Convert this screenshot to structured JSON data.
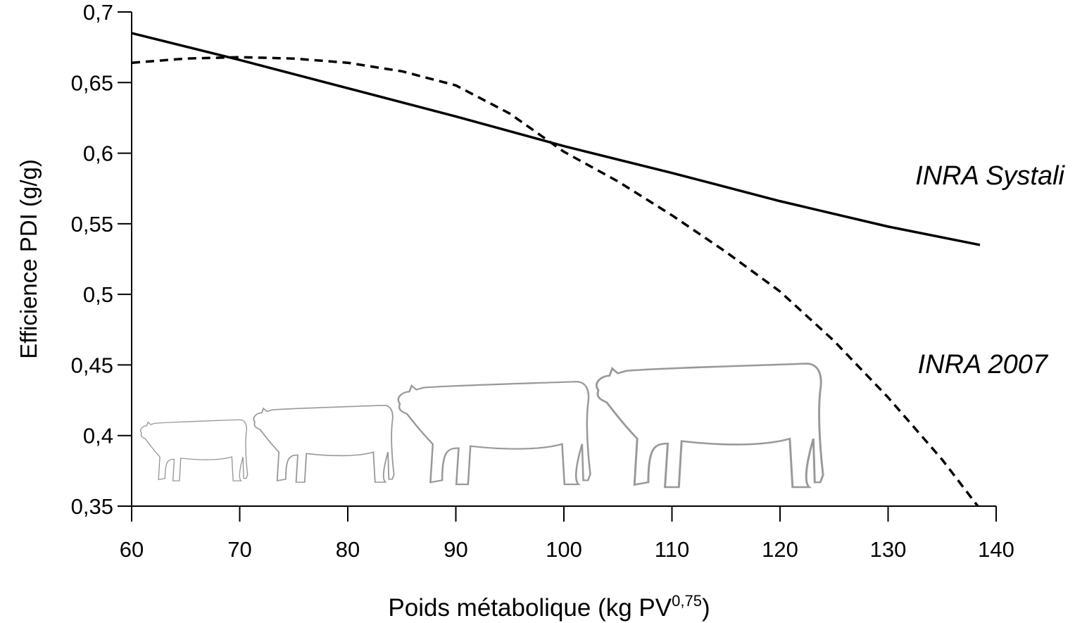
{
  "chart_data": {
    "type": "line",
    "xlabel": "Poids métabolique (kg PV",
    "xlabel_superscript": "0,75",
    "xlabel_end": ")",
    "ylabel": "Efficience PDI (g/g)",
    "xlim": [
      60,
      140
    ],
    "ylim": [
      0.35,
      0.7
    ],
    "xticks": [
      60,
      70,
      80,
      90,
      100,
      110,
      120,
      130,
      140
    ],
    "yticks": [
      {
        "value": 0.35,
        "label": "0,35"
      },
      {
        "value": 0.4,
        "label": "0,4"
      },
      {
        "value": 0.45,
        "label": "0,45"
      },
      {
        "value": 0.5,
        "label": "0,5"
      },
      {
        "value": 0.55,
        "label": "0,55"
      },
      {
        "value": 0.6,
        "label": "0,6"
      },
      {
        "value": 0.65,
        "label": "0,65"
      },
      {
        "value": 0.7,
        "label": "0,7"
      }
    ],
    "series": [
      {
        "name": "INRA Systali",
        "color": "#000000",
        "dash": false,
        "x": [
          60,
          70,
          80,
          90,
          100,
          110,
          120,
          130,
          138.5
        ],
        "values": [
          0.685,
          0.666,
          0.646,
          0.626,
          0.605,
          0.586,
          0.566,
          0.548,
          0.535
        ]
      },
      {
        "name": "INRA 2007",
        "color": "#000000",
        "dash": true,
        "x": [
          60,
          65,
          70,
          75,
          80,
          85,
          90,
          95,
          100,
          105,
          110,
          115,
          120,
          125,
          130,
          135,
          138.3
        ],
        "values": [
          0.664,
          0.667,
          0.668,
          0.667,
          0.664,
          0.658,
          0.648,
          0.628,
          0.601,
          0.58,
          0.556,
          0.53,
          0.502,
          0.467,
          0.427,
          0.383,
          0.35
        ]
      }
    ]
  }
}
